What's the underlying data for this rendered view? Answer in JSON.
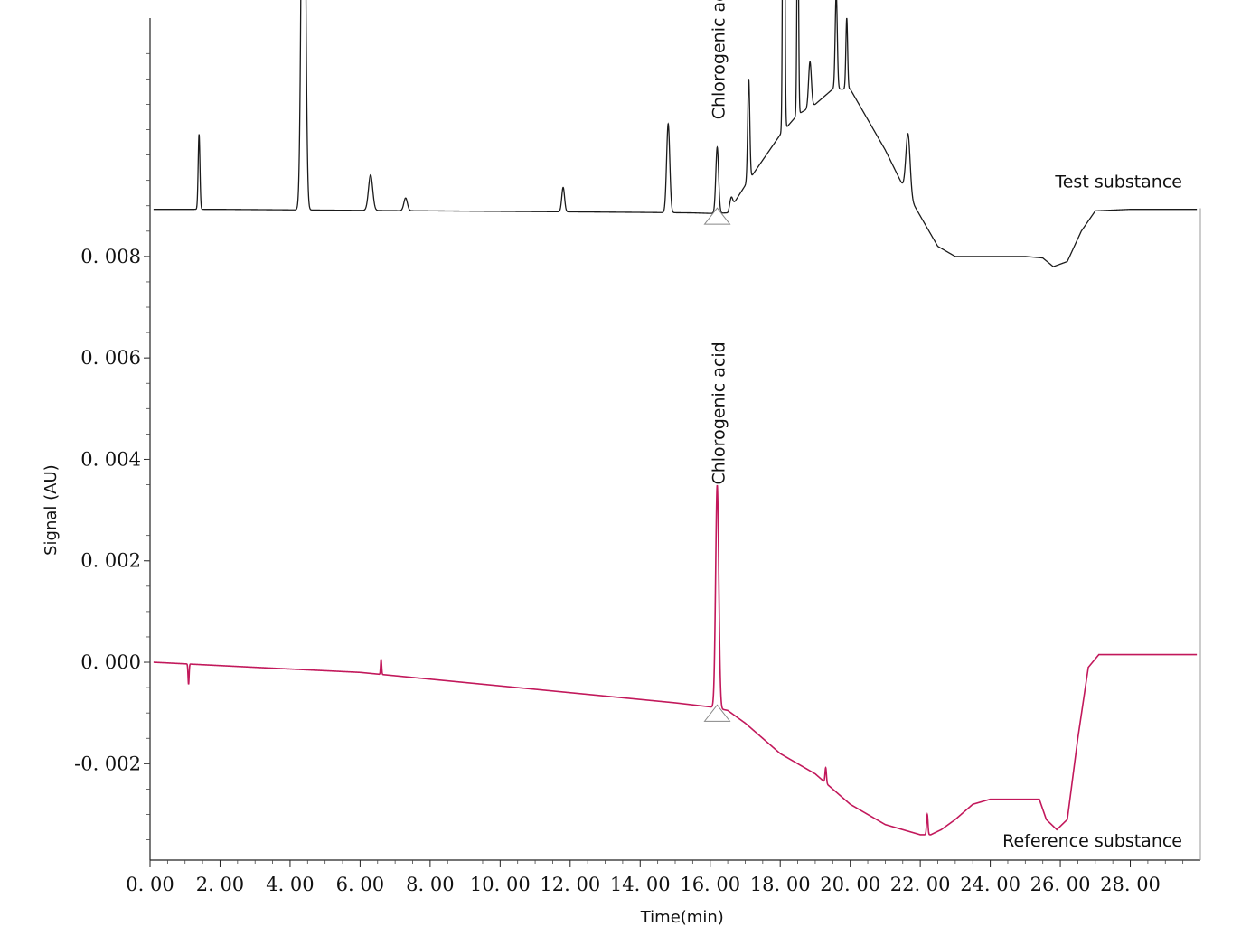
{
  "chart_data": {
    "type": "line",
    "xlabel": "Time(min)",
    "ylabel": "Signal (AU)",
    "xlim": [
      0,
      30
    ],
    "ylim": [
      -0.0039,
      0.0127
    ],
    "x_ticks": [
      {
        "value": 0,
        "label": "0. 00"
      },
      {
        "value": 2,
        "label": "2. 00"
      },
      {
        "value": 4,
        "label": "4. 00"
      },
      {
        "value": 6,
        "label": "6. 00"
      },
      {
        "value": 8,
        "label": "8. 00"
      },
      {
        "value": 10,
        "label": "10. 00"
      },
      {
        "value": 12,
        "label": "12. 00"
      },
      {
        "value": 14,
        "label": "14. 00"
      },
      {
        "value": 16,
        "label": "16. 00"
      },
      {
        "value": 18,
        "label": "18. 00"
      },
      {
        "value": 20,
        "label": "20. 00"
      },
      {
        "value": 22,
        "label": "22. 00"
      },
      {
        "value": 24,
        "label": "24. 00"
      },
      {
        "value": 26,
        "label": "26. 00"
      },
      {
        "value": 28,
        "label": "28. 00"
      }
    ],
    "y_ticks": [
      {
        "value": 0.008,
        "label": "0. 008"
      },
      {
        "value": 0.006,
        "label": "0. 006"
      },
      {
        "value": 0.004,
        "label": "0. 004"
      },
      {
        "value": 0.002,
        "label": "0. 002"
      },
      {
        "value": 0.0,
        "label": "0. 000"
      },
      {
        "value": -0.002,
        "label": "-0. 002"
      }
    ],
    "series": [
      {
        "name": "Test substance",
        "color": "#1a1a1a",
        "baseline": [
          [
            0.1,
            0.00893
          ],
          [
            2,
            0.00893
          ],
          [
            4,
            0.00892
          ],
          [
            6,
            0.00891
          ],
          [
            8,
            0.0089
          ],
          [
            10,
            0.00889
          ],
          [
            12,
            0.00888
          ],
          [
            14,
            0.00887
          ],
          [
            15.5,
            0.00886
          ],
          [
            16,
            0.00885
          ],
          [
            16.5,
            0.00886
          ],
          [
            17,
            0.0094
          ],
          [
            17.5,
            0.0099
          ],
          [
            18,
            0.0104
          ],
          [
            18.5,
            0.0108
          ],
          [
            19,
            0.011
          ],
          [
            19.5,
            0.0113
          ],
          [
            20.0,
            0.0113
          ],
          [
            20.5,
            0.0107
          ],
          [
            21,
            0.0101
          ],
          [
            21.5,
            0.0094
          ],
          [
            22,
            0.0088
          ],
          [
            22.5,
            0.0082
          ],
          [
            23,
            0.008
          ],
          [
            24,
            0.008
          ],
          [
            25,
            0.008
          ],
          [
            25.5,
            0.00797
          ],
          [
            25.8,
            0.0078
          ],
          [
            26.2,
            0.0079
          ],
          [
            26.6,
            0.0085
          ],
          [
            27,
            0.0089
          ],
          [
            28,
            0.00893
          ],
          [
            29.9,
            0.00893
          ]
        ],
        "peaks": [
          {
            "x": 1.4,
            "h": 0.00148,
            "w": 0.025
          },
          {
            "x": 4.38,
            "h": 0.01045,
            "w": 0.055
          },
          {
            "x": 6.3,
            "h": 0.0007,
            "w": 0.06
          },
          {
            "x": 7.3,
            "h": 0.00025,
            "w": 0.05
          },
          {
            "x": 11.8,
            "h": 0.00048,
            "w": 0.04
          },
          {
            "x": 14.8,
            "h": 0.00175,
            "w": 0.045
          },
          {
            "x": 16.2,
            "h": 0.0013,
            "w": 0.04
          },
          {
            "x": 16.6,
            "h": 0.0002,
            "w": 0.04
          },
          {
            "x": 17.1,
            "h": 0.002,
            "w": 0.03
          },
          {
            "x": 18.1,
            "h": 0.0113,
            "w": 0.025
          },
          {
            "x": 18.5,
            "h": 0.0048,
            "w": 0.022
          },
          {
            "x": 18.85,
            "h": 0.0009,
            "w": 0.04
          },
          {
            "x": 19.6,
            "h": 0.0019,
            "w": 0.03
          },
          {
            "x": 19.9,
            "h": 0.0014,
            "w": 0.025
          },
          {
            "x": 21.65,
            "h": 0.0012,
            "w": 0.06
          }
        ]
      },
      {
        "name": "Reference substance",
        "color": "#c2185b",
        "baseline": [
          [
            0.1,
            0.0
          ],
          [
            3,
            -0.0001
          ],
          [
            6,
            -0.0002
          ],
          [
            9,
            -0.0004
          ],
          [
            12,
            -0.0006
          ],
          [
            15,
            -0.0008
          ],
          [
            16,
            -0.00088
          ],
          [
            16.5,
            -0.00095
          ],
          [
            17,
            -0.0012
          ],
          [
            17.5,
            -0.0015
          ],
          [
            18,
            -0.0018
          ],
          [
            18.5,
            -0.002
          ],
          [
            19,
            -0.0022
          ],
          [
            19.5,
            -0.0025
          ],
          [
            20,
            -0.0028
          ],
          [
            20.5,
            -0.003
          ],
          [
            21,
            -0.0032
          ],
          [
            21.5,
            -0.0033
          ],
          [
            22,
            -0.0034
          ],
          [
            22.3,
            -0.0034
          ],
          [
            22.6,
            -0.0033
          ],
          [
            23,
            -0.0031
          ],
          [
            23.5,
            -0.0028
          ],
          [
            24,
            -0.0027
          ],
          [
            25,
            -0.0027
          ],
          [
            25.4,
            -0.0027
          ],
          [
            25.6,
            -0.0031
          ],
          [
            25.9,
            -0.0033
          ],
          [
            26.2,
            -0.0031
          ],
          [
            26.5,
            -0.0015
          ],
          [
            26.8,
            -0.0001
          ],
          [
            27.1,
            0.00015
          ],
          [
            28,
            0.00015
          ],
          [
            29.9,
            0.00015
          ]
        ],
        "peaks": [
          {
            "x": 1.1,
            "h": -0.0004,
            "w": 0.015
          },
          {
            "x": 6.6,
            "h": 0.0003,
            "w": 0.015
          },
          {
            "x": 16.2,
            "h": 0.0044,
            "w": 0.045
          },
          {
            "x": 19.3,
            "h": 0.0003,
            "w": 0.02
          },
          {
            "x": 22.2,
            "h": 0.0004,
            "w": 0.02
          }
        ]
      }
    ],
    "annotations": [
      {
        "text": "Chlorogenic acid",
        "x": 16.2,
        "y": 0.0107,
        "rotation": -90
      },
      {
        "text": "Chlorogenic acid",
        "x": 16.2,
        "y": 0.0035,
        "rotation": -90
      }
    ],
    "legend": "inline labels",
    "grid": false
  }
}
